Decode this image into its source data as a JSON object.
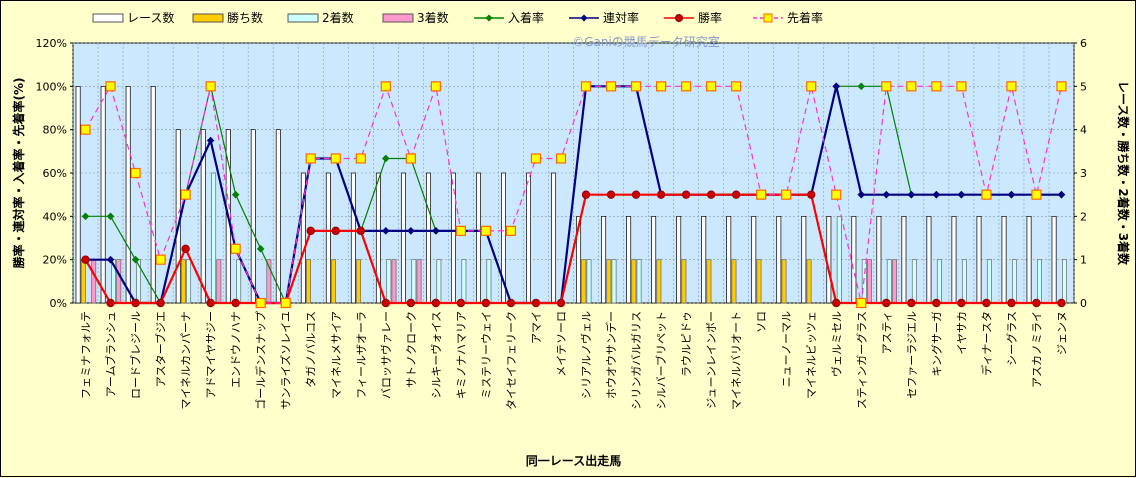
{
  "watermark": "©Ganiの競馬データ研究室",
  "chart_data": {
    "type": "bar",
    "xlabel": "同一レース出走馬",
    "ylabel_left": "勝率・連対率・入着率・先着率(%)",
    "ylabel_right": "レース数・勝ち数・2着数・3着数",
    "y_left_range": [
      0,
      120
    ],
    "y_left_ticks": [
      "0%",
      "20%",
      "40%",
      "60%",
      "80%",
      "100%",
      "120%"
    ],
    "y_right_range": [
      0,
      6
    ],
    "y_right_ticks": [
      "0",
      "1",
      "2",
      "3",
      "4",
      "5",
      "6"
    ],
    "grid": true,
    "legend_position": "top",
    "categories": [
      "フェミナフォルテ",
      "アームブランシュ",
      "ロードブレジール",
      "アスターブジエ",
      "マイネルカンパーナ",
      "アドマイヤサジー",
      "エンドウノハナ",
      "ゴールデンスナップ",
      "サンライズソレイユ",
      "タガノバルコス",
      "マイネルメサイア",
      "フィールザオーラ",
      "バロッサヴァレー",
      "サトノクローク",
      "シルキーヴォイス",
      "キミノナハマリア",
      "ミステリーウェイ",
      "タイセイフェリーク",
      "アマイ",
      "メイテソーロ",
      "シリアルノヴェル",
      "ホウオウサンデー",
      "シリンガバルガリス",
      "シルバーブリペット",
      "ラウルピドゥ",
      "ジューンレインボー",
      "マイネルバリオート",
      "ソロ",
      "ニューノーマル",
      "マイネルビッツェ",
      "ヴェルミセル",
      "スティンガーグラス",
      "アスティ",
      "セファーラジエル",
      "キングサーガ",
      "イヤサカ",
      "ディナースタ",
      "シーグラス",
      "アスカノミライ",
      "ジェンヌ"
    ],
    "series": [
      {
        "name": "レース数",
        "kind": "bar",
        "axis": "right",
        "color": "#ffffff",
        "values": [
          5,
          5,
          5,
          5,
          4,
          4,
          4,
          4,
          4,
          3,
          3,
          3,
          3,
          3,
          3,
          3,
          3,
          3,
          3,
          3,
          2,
          2,
          2,
          2,
          2,
          2,
          2,
          2,
          2,
          2,
          2,
          2,
          2,
          2,
          2,
          2,
          2,
          2,
          2,
          2
        ]
      },
      {
        "name": "勝ち数",
        "kind": "bar",
        "axis": "right",
        "color": "#ffcc00",
        "values": [
          1,
          0,
          0,
          0,
          1,
          0,
          0,
          0,
          0,
          1,
          1,
          1,
          0,
          0,
          0,
          0,
          0,
          0,
          0,
          0,
          1,
          1,
          1,
          1,
          1,
          1,
          1,
          1,
          1,
          1,
          0,
          0,
          0,
          0,
          0,
          0,
          0,
          0,
          0,
          0
        ]
      },
      {
        "name": "2着数",
        "kind": "bar",
        "axis": "right",
        "color": "#ccffff",
        "values": [
          0,
          1,
          1,
          0,
          1,
          3,
          1,
          0,
          0,
          0,
          0,
          0,
          1,
          1,
          1,
          1,
          1,
          0,
          0,
          0,
          1,
          1,
          1,
          0,
          0,
          0,
          0,
          0,
          0,
          0,
          2,
          1,
          1,
          1,
          1,
          1,
          1,
          1,
          1,
          1
        ]
      },
      {
        "name": "3着数",
        "kind": "bar",
        "axis": "right",
        "color": "#ff99cc",
        "values": [
          1,
          1,
          0,
          0,
          0,
          1,
          0,
          1,
          0,
          0,
          0,
          0,
          1,
          1,
          0,
          0,
          0,
          0,
          0,
          0,
          0,
          0,
          0,
          0,
          0,
          0,
          0,
          0,
          0,
          0,
          0,
          1,
          1,
          0,
          0,
          0,
          0,
          0,
          0,
          0
        ]
      },
      {
        "name": "入着率",
        "kind": "line",
        "axis": "left",
        "color": "#008000",
        "marker": "diamond",
        "values": [
          40,
          40,
          20,
          0,
          50,
          100,
          50,
          25,
          0,
          33.3,
          33.3,
          33.3,
          66.7,
          66.7,
          33.3,
          33.3,
          33.3,
          0,
          0,
          0,
          100,
          100,
          100,
          50,
          50,
          50,
          50,
          50,
          50,
          50,
          100,
          100,
          100,
          50,
          50,
          50,
          50,
          50,
          50,
          50
        ]
      },
      {
        "name": "連対率",
        "kind": "line",
        "axis": "left",
        "color": "#000080",
        "marker": "diamond",
        "values": [
          20,
          20,
          0,
          0,
          50,
          75,
          25,
          0,
          0,
          66.7,
          66.7,
          33.3,
          33.3,
          33.3,
          33.3,
          33.3,
          33.3,
          0,
          0,
          0,
          100,
          100,
          100,
          50,
          50,
          50,
          50,
          50,
          50,
          50,
          100,
          50,
          50,
          50,
          50,
          50,
          50,
          50,
          50,
          50
        ]
      },
      {
        "name": "勝率",
        "kind": "line",
        "axis": "left",
        "color": "#ff0000",
        "marker": "circle",
        "values": [
          20,
          0,
          0,
          0,
          25,
          0,
          0,
          0,
          0,
          33.3,
          33.3,
          33.3,
          0,
          0,
          0,
          0,
          0,
          0,
          0,
          0,
          50,
          50,
          50,
          50,
          50,
          50,
          50,
          50,
          50,
          50,
          0,
          0,
          0,
          0,
          0,
          0,
          0,
          0,
          0,
          0
        ]
      },
      {
        "name": "先着率",
        "kind": "line",
        "axis": "left",
        "color": "#ff33cc",
        "marker": "square",
        "dashed": true,
        "values": [
          80,
          100,
          60,
          20,
          50,
          100,
          25,
          0,
          0,
          66.7,
          66.7,
          66.7,
          100,
          66.7,
          100,
          33.3,
          33.3,
          33.3,
          66.7,
          66.7,
          100,
          100,
          100,
          100,
          100,
          100,
          100,
          50,
          50,
          100,
          50,
          0,
          100,
          100,
          100,
          100,
          50,
          100,
          50,
          100
        ]
      }
    ]
  }
}
